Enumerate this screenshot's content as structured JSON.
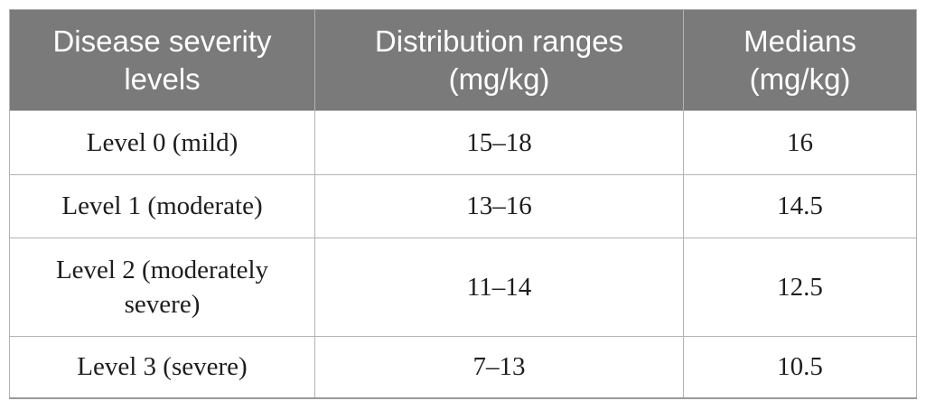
{
  "chart_data": {
    "type": "table",
    "columns": [
      "Disease severity\nlevels",
      "Distribution ranges\n(mg/kg)",
      "Medians\n(mg/kg)"
    ],
    "rows": [
      [
        "Level 0 (mild)",
        "15–18",
        "16"
      ],
      [
        "Level 1 (moderate)",
        "13–16",
        "14.5"
      ],
      [
        "Level 2 (moderately severe)",
        "11–14",
        "12.5"
      ],
      [
        "Level 3 (severe)",
        "7–13",
        "10.5"
      ]
    ]
  },
  "colors": {
    "header_bg": "#7a7a7a",
    "header_text": "#ffffff",
    "grid_line": "#b3b3b3",
    "bottom_rule": "#9a9a9a",
    "body_text": "#1d1d1d",
    "background": "#ffffff"
  }
}
